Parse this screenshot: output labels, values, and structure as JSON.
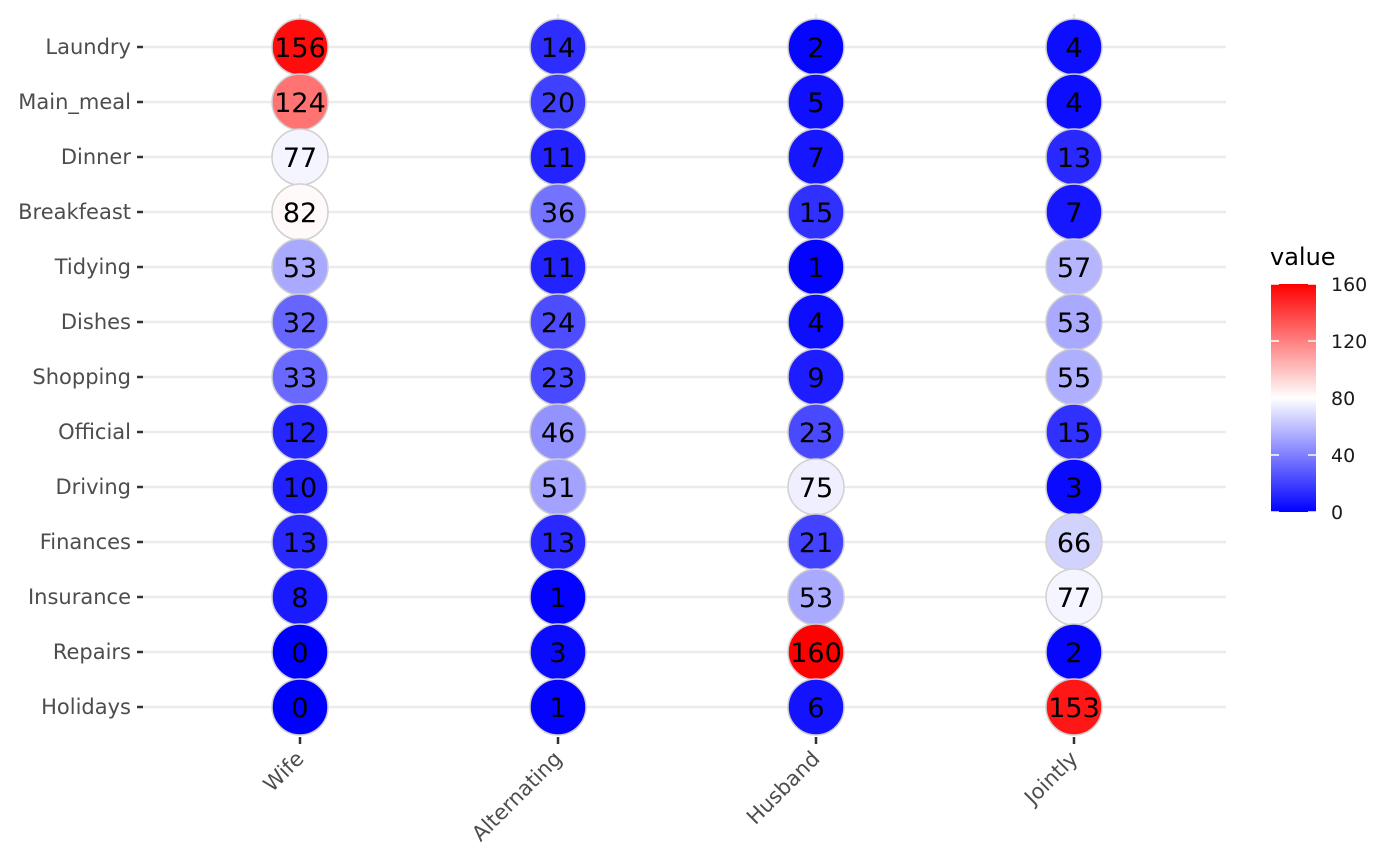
{
  "chart_data": {
    "type": "heatmap",
    "rows": [
      "Laundry",
      "Main_meal",
      "Dinner",
      "Breakfeast",
      "Tidying",
      "Dishes",
      "Shopping",
      "Official",
      "Driving",
      "Finances",
      "Insurance",
      "Repairs",
      "Holidays"
    ],
    "columns": [
      "Wife",
      "Alternating",
      "Husband",
      "Jointly"
    ],
    "values": [
      [
        156,
        14,
        2,
        4
      ],
      [
        124,
        20,
        5,
        4
      ],
      [
        77,
        11,
        7,
        13
      ],
      [
        82,
        36,
        15,
        7
      ],
      [
        53,
        11,
        1,
        57
      ],
      [
        32,
        24,
        4,
        53
      ],
      [
        33,
        23,
        9,
        55
      ],
      [
        12,
        46,
        23,
        15
      ],
      [
        10,
        51,
        75,
        3
      ],
      [
        13,
        13,
        21,
        66
      ],
      [
        8,
        1,
        53,
        77
      ],
      [
        0,
        3,
        160,
        2
      ],
      [
        0,
        1,
        6,
        153
      ]
    ],
    "legend": {
      "title": "value",
      "ticks": [
        160,
        120,
        80,
        40,
        0
      ],
      "range": [
        0,
        160
      ],
      "placement": "right"
    },
    "colors": {
      "low": "#0000ff",
      "mid": "#ffffff",
      "high": "#ff0000",
      "midpoint": 80
    },
    "grid": true
  }
}
